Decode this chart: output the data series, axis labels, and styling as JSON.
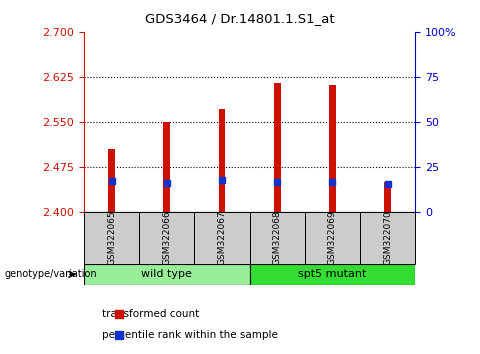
{
  "title": "GDS3464 / Dr.14801.1.S1_at",
  "samples": [
    "GSM322065",
    "GSM322066",
    "GSM322067",
    "GSM322068",
    "GSM322069",
    "GSM322070"
  ],
  "transformed_counts": [
    2.505,
    2.55,
    2.572,
    2.615,
    2.612,
    2.451
  ],
  "percentile_ranks": [
    17.3,
    16.5,
    17.8,
    17.0,
    16.8,
    15.5
  ],
  "bar_bottom": 2.4,
  "ylim_left": [
    2.4,
    2.7
  ],
  "ylim_right": [
    0,
    100
  ],
  "yticks_left": [
    2.4,
    2.475,
    2.55,
    2.625,
    2.7
  ],
  "yticks_right": [
    0,
    25,
    50,
    75,
    100
  ],
  "ytick_labels_right": [
    "0",
    "25",
    "50",
    "75",
    "100%"
  ],
  "bar_color": "#cc1100",
  "blue_color": "#1133cc",
  "group1_samples": [
    0,
    1,
    2
  ],
  "group2_samples": [
    3,
    4,
    5
  ],
  "group1_label": "wild type",
  "group2_label": "spt5 mutant",
  "group1_color": "#99ee99",
  "group2_color": "#33dd33",
  "genotype_label": "genotype/variation",
  "legend1": "transformed count",
  "legend2": "percentile rank within the sample",
  "bg_color": "#ffffff",
  "plot_bg_color": "#ffffff",
  "tick_label_color_left": "#cc1100",
  "tick_label_color_right": "#0000cc",
  "bar_width": 0.12,
  "blue_square_size": 25,
  "label_area_color": "#cccccc",
  "grid_dotted_color": "#000000"
}
